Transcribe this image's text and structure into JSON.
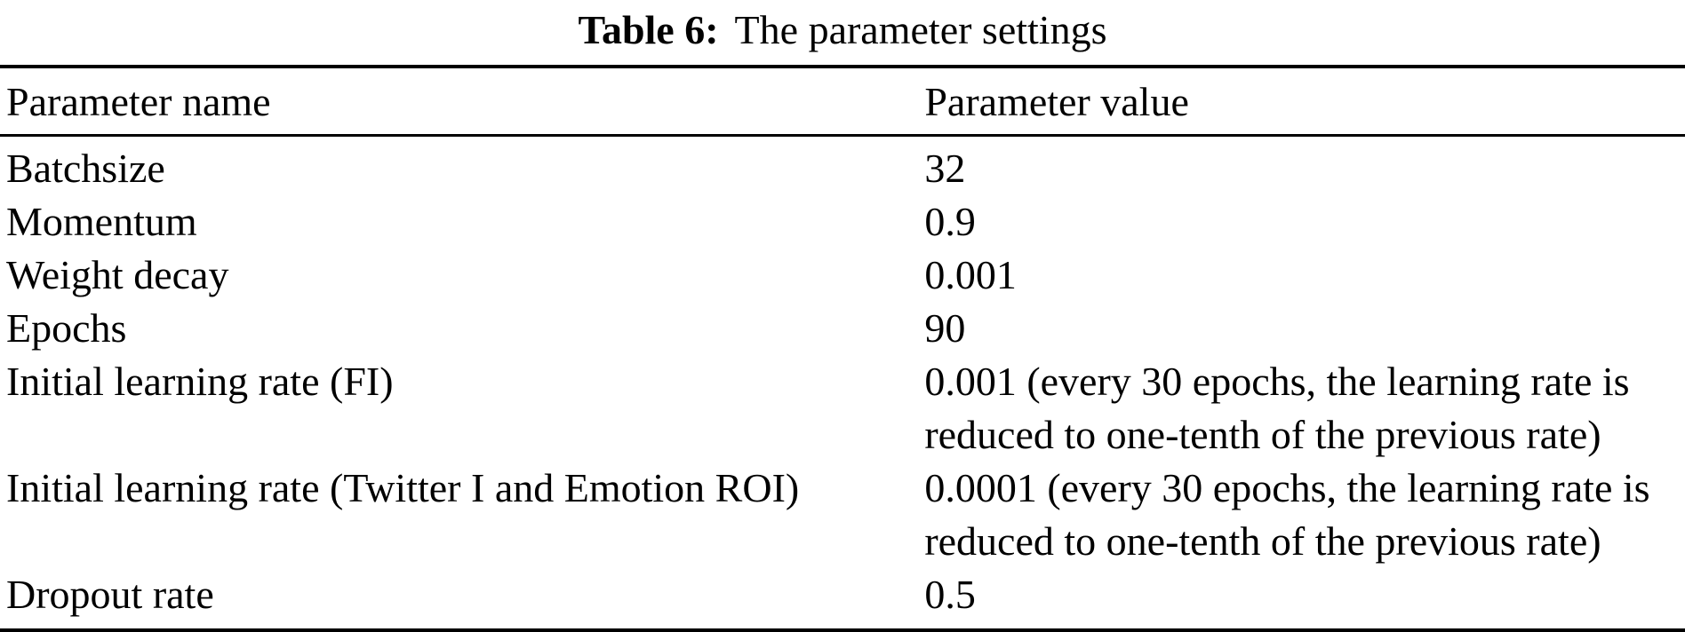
{
  "page": {
    "background_color": "#ffffff",
    "text_color": "#000000",
    "rule_color": "#000000"
  },
  "caption": {
    "label": "Table 6:",
    "title": "The parameter settings"
  },
  "table": {
    "columns": [
      {
        "header": "Parameter name"
      },
      {
        "header": "Parameter value"
      }
    ],
    "rows": [
      {
        "name": "Batchsize",
        "value": "32"
      },
      {
        "name": "Momentum",
        "value": "0.9"
      },
      {
        "name": "Weight decay",
        "value": "0.001"
      },
      {
        "name": "Epochs",
        "value": "90"
      },
      {
        "name": "Initial learning rate (FI)",
        "value": "0.001 (every 30 epochs, the learning rate is\nreduced to one-tenth of the previous rate)"
      },
      {
        "name": "Initial learning rate (Twitter I and Emotion ROI)",
        "value": "0.0001 (every 30 epochs, the learning rate is\nreduced to one-tenth of the previous rate)"
      },
      {
        "name": "Dropout rate",
        "value": "0.5"
      }
    ]
  }
}
